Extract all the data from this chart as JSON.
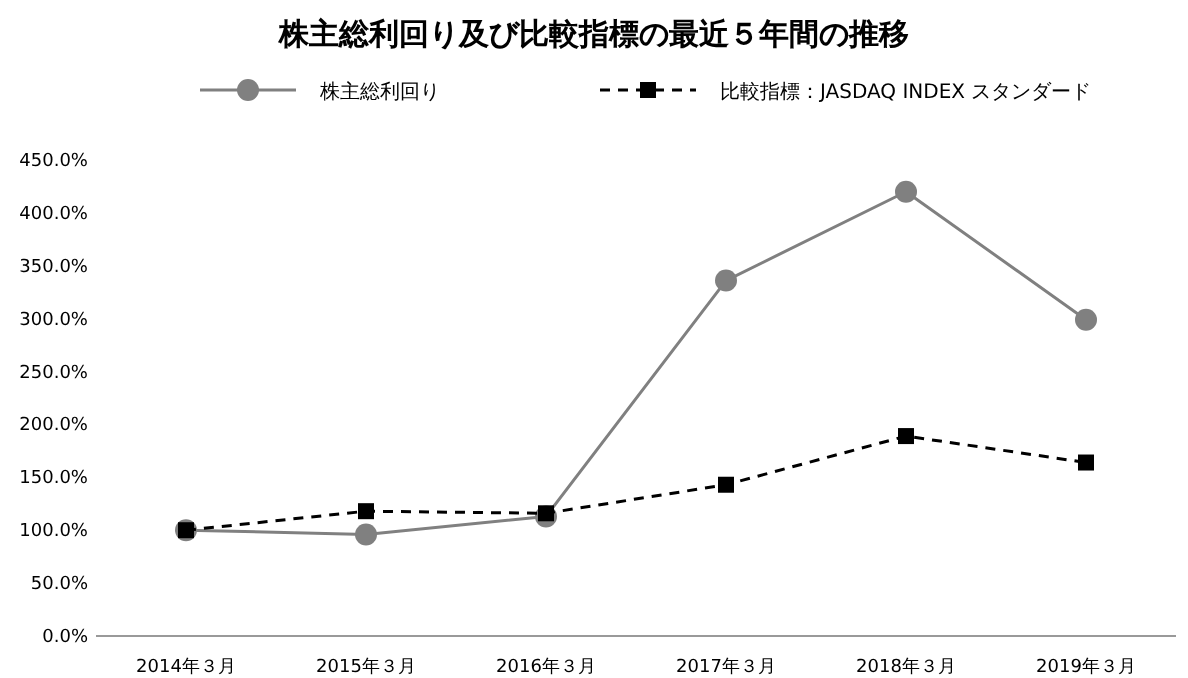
{
  "chart_data": {
    "type": "line",
    "title": "株主総利回り及び比較指標の最近５年間の推移",
    "categories": [
      "2014年３月",
      "2015年３月",
      "2016年３月",
      "2017年３月",
      "2018年３月",
      "2019年３月"
    ],
    "series": [
      {
        "name": "株主総利回り",
        "color": "#808080",
        "marker": "circle",
        "line_style": "solid",
        "values": [
          100,
          96,
          113,
          336,
          420,
          299
        ]
      },
      {
        "name": "比較指標：JASDAQ INDEX スタンダード",
        "color": "#000000",
        "marker": "square",
        "line_style": "dashed",
        "values": [
          100,
          118,
          116,
          143,
          189,
          164
        ]
      }
    ],
    "ylim": [
      0,
      450
    ],
    "yticks": [
      {
        "value": 0,
        "label": "0.0%"
      },
      {
        "value": 50,
        "label": "50.0%"
      },
      {
        "value": 100,
        "label": "100.0%"
      },
      {
        "value": 150,
        "label": "150.0%"
      },
      {
        "value": 200,
        "label": "200.0%"
      },
      {
        "value": 250,
        "label": "250.0%"
      },
      {
        "value": 300,
        "label": "300.0%"
      },
      {
        "value": 350,
        "label": "350.0%"
      },
      {
        "value": 400,
        "label": "400.0%"
      },
      {
        "value": 450,
        "label": "450.0%"
      }
    ],
    "legend": "top",
    "grid": false
  }
}
